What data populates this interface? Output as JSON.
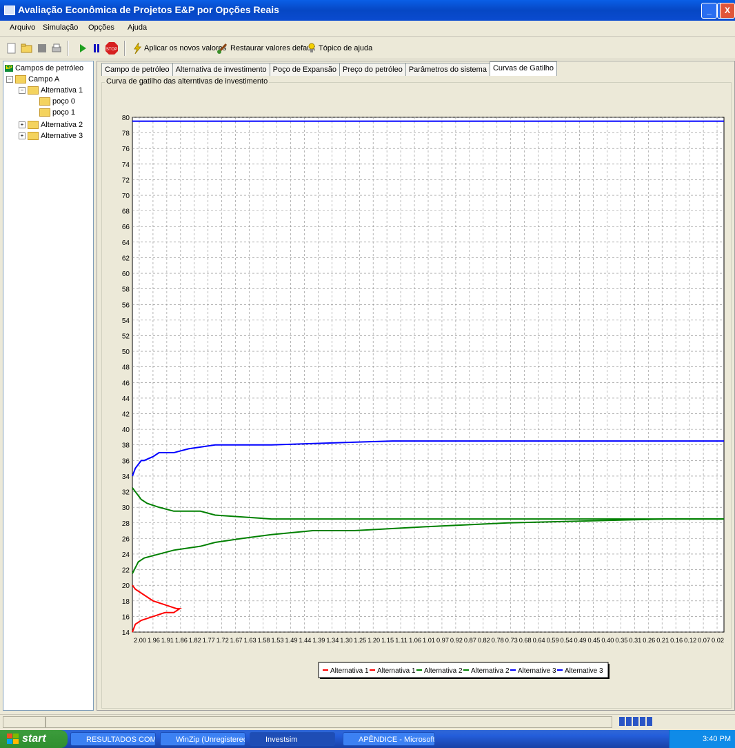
{
  "window": {
    "title": "Avaliação Econômica de Projetos E&P por Opções Reais",
    "minimize": "_",
    "maximize": "❐",
    "close": "X"
  },
  "menu": [
    "Arquivo",
    "Simulação",
    "Opções",
    "Ajuda"
  ],
  "toolbar": {
    "apply": "Aplicar os novos valores",
    "restore": "Restaurar valores default",
    "help": "Tópico de ajuda"
  },
  "tree": {
    "root": "Campos de petróleo",
    "field": "Campo A",
    "alt1": "Alternativa 1",
    "well0": "poço 0",
    "well1": "poço 1",
    "alt2": "Alternativa 2",
    "alt3": "Alternative 3"
  },
  "tabs": [
    "Campo de petróleo",
    "Alternativa de investimento",
    "Poço de Expansão",
    "Preço do petróleo",
    "Parâmetros do sistema",
    "Curvas de Gatilho"
  ],
  "group_label": "Curva de gatilho das alterntivas de investimento",
  "colors": {
    "red": "#ff0000",
    "green": "#008000",
    "blue": "#0000ff"
  },
  "chart_data": {
    "type": "line",
    "title": "",
    "xlabel": "",
    "ylabel": "",
    "ylim": [
      14,
      80
    ],
    "yticks": [
      14,
      16,
      18,
      20,
      22,
      24,
      26,
      28,
      30,
      32,
      34,
      36,
      38,
      40,
      42,
      44,
      46,
      48,
      50,
      52,
      54,
      56,
      58,
      60,
      62,
      64,
      66,
      68,
      70,
      72,
      74,
      76,
      78,
      80
    ],
    "xticks": [
      "2.00",
      "1.96",
      "1.91",
      "1.86",
      "1.82",
      "1.77",
      "1.72",
      "1.67",
      "1.63",
      "1.58",
      "1.53",
      "1.49",
      "1.44",
      "1.39",
      "1.34",
      "1.30",
      "1.25",
      "1.20",
      "1.15",
      "1.11",
      "1.06",
      "1.01",
      "0.97",
      "0.92",
      "0.87",
      "0.82",
      "0.78",
      "0.73",
      "0.68",
      "0.64",
      "0.59",
      "0.54",
      "0.49",
      "0.45",
      "0.40",
      "0.35",
      "0.31",
      "0.26",
      "0.21",
      "0.16",
      "0.12",
      "0.07",
      "0.02"
    ],
    "xlim": [
      2.0,
      0.0
    ],
    "grid": true,
    "legend": "bottom-center",
    "series": [
      {
        "name": "Alternativa 1",
        "color": "red",
        "x": [
          2.0,
          1.99,
          1.97,
          1.93,
          1.89,
          1.86,
          1.84,
          1.85
        ],
        "y": [
          14.0,
          15.0,
          15.5,
          16.0,
          16.5,
          16.5,
          17.0,
          17.0
        ]
      },
      {
        "name": "Alternativa 1",
        "color": "red",
        "x": [
          2.0,
          1.99,
          1.97,
          1.93,
          1.89,
          1.85
        ],
        "y": [
          20.0,
          19.5,
          19.0,
          18.0,
          17.5,
          17.0
        ]
      },
      {
        "name": "Alternativa 2",
        "color": "green",
        "x": [
          2.0,
          1.98,
          1.96,
          1.91,
          1.86,
          1.77,
          1.72,
          1.63,
          1.53,
          1.39,
          1.25,
          1.01,
          0.73,
          0.2,
          0.0
        ],
        "y": [
          21.5,
          23.0,
          23.5,
          24.0,
          24.5,
          25.0,
          25.5,
          26.0,
          26.5,
          27.0,
          27.0,
          27.5,
          28.0,
          28.5,
          28.5
        ]
      },
      {
        "name": "Alternativa 2",
        "color": "green",
        "x": [
          2.0,
          1.99,
          1.97,
          1.95,
          1.91,
          1.86,
          1.77,
          1.72,
          1.53,
          1.25,
          0.0
        ],
        "y": [
          32.5,
          32.0,
          31.0,
          30.5,
          30.0,
          29.5,
          29.5,
          29.0,
          28.5,
          28.5,
          28.5
        ]
      },
      {
        "name": "Alternative 3",
        "color": "blue",
        "x": [
          2.0,
          1.99,
          1.98,
          1.97,
          1.96,
          1.93,
          1.91,
          1.86,
          1.81,
          1.72,
          1.53,
          1.12,
          0.0
        ],
        "y": [
          34.0,
          35.0,
          35.5,
          36.0,
          36.0,
          36.5,
          37.0,
          37.0,
          37.5,
          38.0,
          38.0,
          38.5,
          38.5
        ]
      },
      {
        "name": "Alternative 3",
        "color": "blue",
        "x": [
          2.0,
          0.0
        ],
        "y": [
          79.5,
          79.5
        ]
      }
    ]
  },
  "taskbar": {
    "start": "start",
    "tasks": [
      "RESULTADOS COM In...",
      "WinZip (Unregistered...",
      "Investsim",
      "APÊNDICE - Microsoft..."
    ],
    "clock": "3:40 PM"
  }
}
